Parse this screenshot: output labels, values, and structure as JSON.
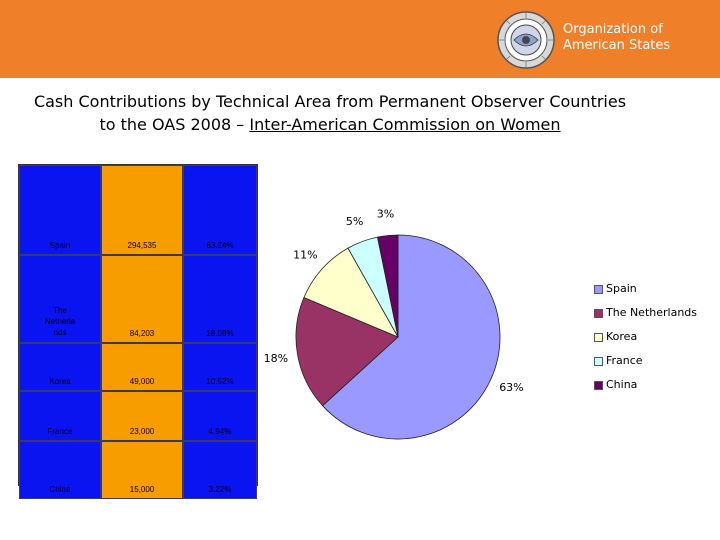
{
  "header": {
    "org_line1": "Organization of",
    "org_line2": "American States",
    "seal_icon": "oas-seal-icon",
    "bg_color": "#f07f2a"
  },
  "title": {
    "line1": "Cash Contributions by Technical Area from Permanent Observer Countries",
    "line2_prefix": "to the OAS 2008 – ",
    "line2_underlined": "Inter-American Commission on Women"
  },
  "table": {
    "rows": [
      {
        "country": "Spain",
        "amount": "294,535",
        "percent": "63.24%"
      },
      {
        "country": "The Netherla nds",
        "amount": "84,203",
        "percent": "18.08%"
      },
      {
        "country": "Korea",
        "amount": "49,000",
        "percent": "10.52%"
      },
      {
        "country": "France",
        "amount": "23,000",
        "percent": "4.94%"
      },
      {
        "country": "China",
        "amount": "15,000",
        "percent": "3.22%"
      }
    ]
  },
  "chart_data": {
    "type": "pie",
    "title": "",
    "slices": [
      {
        "label": "Spain",
        "value": 63.24,
        "display": "63%",
        "color": "#9999ff"
      },
      {
        "label": "The Netherlands",
        "value": 18.08,
        "display": "18%",
        "color": "#993366"
      },
      {
        "label": "Korea",
        "value": 10.52,
        "display": "11%",
        "color": "#ffffcc"
      },
      {
        "label": "France",
        "value": 4.94,
        "display": "5%",
        "color": "#ccffff"
      },
      {
        "label": "China",
        "value": 3.22,
        "display": "3%",
        "color": "#660066"
      }
    ],
    "legend_position": "right"
  }
}
